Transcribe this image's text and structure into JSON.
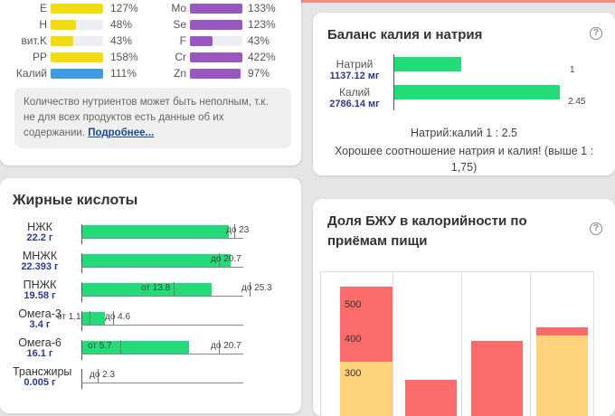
{
  "nutrients": {
    "left": [
      {
        "label": "E",
        "percent": "127%",
        "value": 127,
        "color": "#f2dc10"
      },
      {
        "label": "H",
        "percent": "48%",
        "value": 48,
        "color": "#f2dc10"
      },
      {
        "label": "вит.K",
        "percent": "43%",
        "value": 43,
        "color": "#f2dc10"
      },
      {
        "label": "PP",
        "percent": "158%",
        "value": 158,
        "color": "#f2dc10"
      },
      {
        "label": "Калий",
        "percent": "111%",
        "value": 111,
        "color": "#3d9be0"
      }
    ],
    "right": [
      {
        "label": "Mo",
        "percent": "133%",
        "value": 133,
        "color": "#9957c0"
      },
      {
        "label": "Se",
        "percent": "123%",
        "value": 123,
        "color": "#9957c0"
      },
      {
        "label": "F",
        "percent": "43%",
        "value": 43,
        "color": "#9957c0"
      },
      {
        "label": "Cr",
        "percent": "422%",
        "value": 422,
        "color": "#9957c0"
      },
      {
        "label": "Zn",
        "percent": "97%",
        "value": 97,
        "color": "#9957c0"
      }
    ],
    "note": "Количество нутриентов может быть неполным, т.к. не для всех продуктов есть данные об их содержании.",
    "note_link": "Подробнее..."
  },
  "fatty_acids": {
    "title": "Жирные кислоты",
    "rows": [
      {
        "name": "НЖК",
        "value": "22.2 г",
        "fill": 22.2,
        "from": "",
        "to": "до 23"
      },
      {
        "name": "МНЖК",
        "value": "22.393 г",
        "fill": 22.393,
        "from": "",
        "to": "до 20.7"
      },
      {
        "name": "ПНЖК",
        "value": "19.58 г",
        "fill": 19.58,
        "from": "от 13.8",
        "to": "до 25.3"
      },
      {
        "name": "Омега-3",
        "value": "3.4 г",
        "fill": 3.4,
        "from": "от 1.1",
        "to": "до 4.6"
      },
      {
        "name": "Омега-6",
        "value": "16.1 г",
        "fill": 16.1,
        "from": "от 5.7",
        "to": "до 20.7"
      },
      {
        "name": "Трансжиры",
        "value": "0.005 г",
        "fill": 0.005,
        "from": "",
        "to": "до 2.3"
      }
    ]
  },
  "potassium_sodium": {
    "title": "Баланс калия и натрия",
    "sodium_label": "Натрий",
    "sodium_value": "1137.12 мг",
    "sodium_ratio": "1",
    "potassium_label": "Калий",
    "potassium_value": "2786.14 мг",
    "potassium_ratio": "2.45",
    "ratio_text": "Натрий:калий 1 : 2.5",
    "verdict": "Хорошее соотношение натрия и калия! (выше 1 : 1,75)"
  },
  "bju": {
    "title": "Доля БЖУ в калорийности по приёмам пищи",
    "y_ticks": [
      "500",
      "400",
      "300"
    ],
    "colors": {
      "red": "#fb6b6b",
      "yellow": "#fdd27a",
      "orange": "#fb6b6b"
    }
  },
  "icons": {
    "help": "?"
  }
}
